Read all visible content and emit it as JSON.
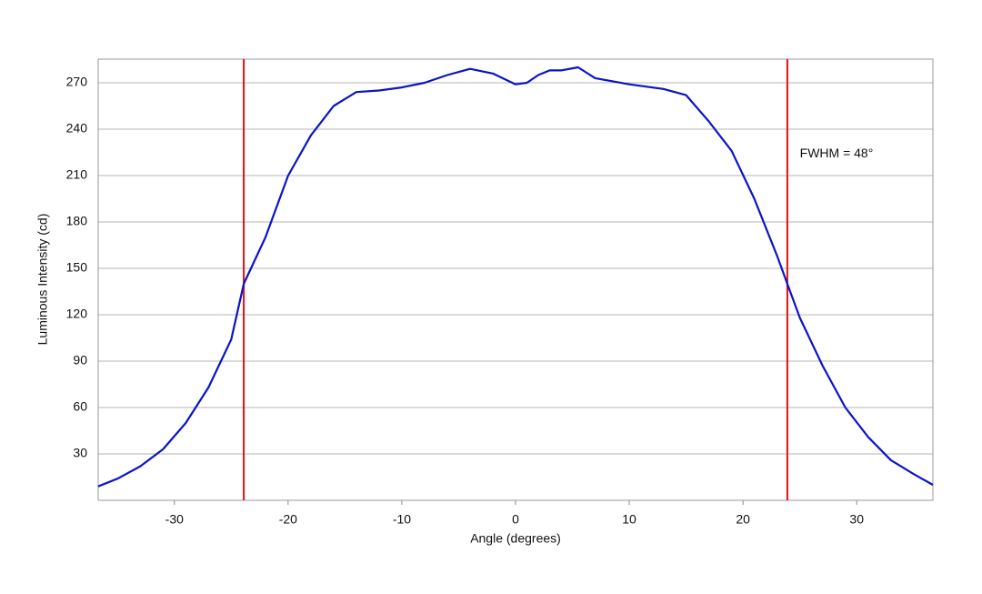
{
  "chart_data": {
    "type": "line",
    "x_label": "Angle (degrees)",
    "y_label": "Luminous Intensity (cd)",
    "x": [
      -36.7,
      -35,
      -33,
      -31,
      -29,
      -27,
      -25,
      -23.9,
      -22,
      -20,
      -18,
      -16,
      -14,
      -12,
      -10,
      -8,
      -6,
      -4,
      -2,
      0,
      1,
      2,
      3,
      4,
      5.5,
      7,
      10,
      13,
      15,
      17,
      19,
      21,
      23,
      23.9,
      25,
      27,
      29,
      31,
      33,
      35,
      36.7
    ],
    "series": [
      {
        "color": "#0a14c8",
        "values": [
          9,
          14,
          22,
          33,
          50,
          73,
          104,
          140,
          170,
          210,
          236,
          255,
          264,
          265,
          267,
          270,
          275,
          279,
          276,
          269,
          270,
          275,
          278,
          278,
          280,
          273,
          269,
          266,
          262,
          245,
          226,
          195,
          158,
          140,
          118,
          87,
          60,
          41,
          26,
          17,
          10
        ]
      }
    ],
    "vlines": [
      -23.9,
      23.9
    ],
    "vline_color": "#dd1111",
    "annotation": {
      "text": "FWHM = 48°",
      "x": 25,
      "y": 224
    },
    "xlim": [
      -36.7,
      36.7
    ],
    "ylim": [
      0,
      285.3
    ],
    "xticks": [
      -30,
      -20,
      -10,
      0,
      10,
      20,
      30
    ],
    "yticks": [
      30,
      60,
      90,
      120,
      150,
      180,
      210,
      240,
      270
    ],
    "grid": true
  }
}
